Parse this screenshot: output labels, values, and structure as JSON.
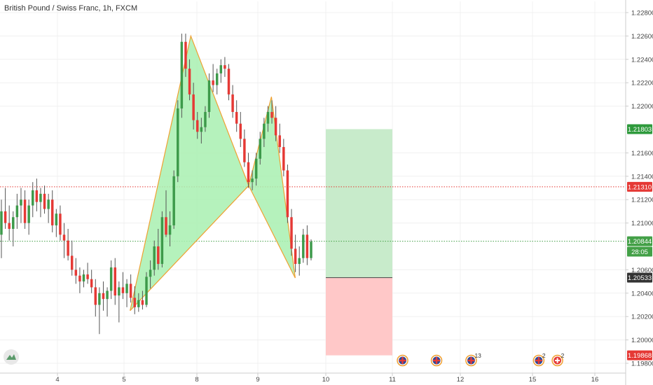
{
  "header": {
    "title": "British Pound / Swiss Franc, 1h, FXCM"
  },
  "chart_data": {
    "type": "candlestick",
    "symbol": "British Pound / Swiss Franc",
    "interval": "1h",
    "source": "FXCM",
    "ylim": [
      1.197,
      1.229
    ],
    "y_ticks": [
      "1.22800",
      "1.22600",
      "1.22400",
      "1.22200",
      "1.22000",
      "1.21600",
      "1.21400",
      "1.21200",
      "1.21000",
      "1.20600",
      "1.20400",
      "1.20200",
      "1.20000",
      "1.19800"
    ],
    "x_ticks": [
      "4",
      "5",
      "8",
      "9",
      "10",
      "11",
      "12",
      "15",
      "16"
    ],
    "xlim": [
      0,
      173
    ],
    "candles": [
      [
        1.209,
        1.212,
        1.207,
        1.211
      ],
      [
        1.211,
        1.213,
        1.2095,
        1.21
      ],
      [
        1.21,
        1.2115,
        1.2085,
        1.2095
      ],
      [
        1.2095,
        1.211,
        1.208,
        1.2105
      ],
      [
        1.2105,
        1.2125,
        1.2095,
        1.2115
      ],
      [
        1.2115,
        1.213,
        1.21,
        1.212
      ],
      [
        1.212,
        1.2128,
        1.2095,
        1.21
      ],
      [
        1.21,
        1.212,
        1.209,
        1.2115
      ],
      [
        1.2115,
        1.2135,
        1.2105,
        1.2128
      ],
      [
        1.2128,
        1.2138,
        1.211,
        1.2118
      ],
      [
        1.2118,
        1.213,
        1.2105,
        1.2125
      ],
      [
        1.2125,
        1.2132,
        1.2108,
        1.2112
      ],
      [
        1.2112,
        1.2125,
        1.21,
        1.212
      ],
      [
        1.212,
        1.2128,
        1.2092,
        1.2098
      ],
      [
        1.2098,
        1.2112,
        1.2088,
        1.2108
      ],
      [
        1.2108,
        1.2115,
        1.2085,
        1.209
      ],
      [
        1.209,
        1.21,
        1.207,
        1.2085
      ],
      [
        1.2085,
        1.2095,
        1.2068,
        1.2072
      ],
      [
        1.2072,
        1.2085,
        1.2055,
        1.206
      ],
      [
        1.206,
        1.207,
        1.2048,
        1.2055
      ],
      [
        1.2055,
        1.2062,
        1.204,
        1.205
      ],
      [
        1.205,
        1.206,
        1.2045,
        1.2056
      ],
      [
        1.2056,
        1.2066,
        1.2048,
        1.2052
      ],
      [
        1.2052,
        1.206,
        1.204,
        1.2045
      ],
      [
        1.2045,
        1.2052,
        1.202,
        1.203
      ],
      [
        1.203,
        1.2045,
        1.2005,
        1.204
      ],
      [
        1.204,
        1.205,
        1.2025,
        1.2035
      ],
      [
        1.2035,
        1.2045,
        1.202,
        1.2042
      ],
      [
        1.2042,
        1.2068,
        1.2035,
        1.2062
      ],
      [
        1.2062,
        1.207,
        1.203,
        1.2038
      ],
      [
        1.2038,
        1.205,
        1.2015,
        1.2045
      ],
      [
        1.2045,
        1.2058,
        1.2035,
        1.204
      ],
      [
        1.204,
        1.2052,
        1.2028,
        1.2048
      ],
      [
        1.2048,
        1.2056,
        1.2032,
        1.2036
      ],
      [
        1.2036,
        1.2046,
        1.2022,
        1.2028
      ],
      [
        1.2028,
        1.204,
        1.2024,
        1.2034
      ],
      [
        1.2034,
        1.2042,
        1.2026,
        1.203
      ],
      [
        1.203,
        1.2058,
        1.2028,
        1.2054
      ],
      [
        1.2054,
        1.2068,
        1.2044,
        1.206
      ],
      [
        1.206,
        1.2085,
        1.2055,
        1.208
      ],
      [
        1.208,
        1.2095,
        1.206,
        1.2065
      ],
      [
        1.2065,
        1.211,
        1.2062,
        1.2105
      ],
      [
        1.2105,
        1.2128,
        1.2088,
        1.209
      ],
      [
        1.209,
        1.211,
        1.208,
        1.2098
      ],
      [
        1.2098,
        1.2145,
        1.2095,
        1.214
      ],
      [
        1.214,
        1.2205,
        1.2135,
        1.2198
      ],
      [
        1.2198,
        1.2262,
        1.219,
        1.2255
      ],
      [
        1.2255,
        1.2262,
        1.2225,
        1.2232
      ],
      [
        1.2232,
        1.224,
        1.2205,
        1.221
      ],
      [
        1.221,
        1.222,
        1.218,
        1.2188
      ],
      [
        1.2188,
        1.2195,
        1.2172,
        1.2178
      ],
      [
        1.2178,
        1.219,
        1.2168,
        1.2182
      ],
      [
        1.2182,
        1.22,
        1.2178,
        1.2195
      ],
      [
        1.2195,
        1.2228,
        1.219,
        1.2222
      ],
      [
        1.2222,
        1.2236,
        1.2212,
        1.2218
      ],
      [
        1.2218,
        1.2232,
        1.221,
        1.2228
      ],
      [
        1.2228,
        1.224,
        1.222,
        1.2235
      ],
      [
        1.2235,
        1.2242,
        1.2225,
        1.2232
      ],
      [
        1.2232,
        1.2236,
        1.2205,
        1.221
      ],
      [
        1.221,
        1.2218,
        1.219,
        1.2195
      ],
      [
        1.2195,
        1.2205,
        1.2178,
        1.2185
      ],
      [
        1.2185,
        1.2195,
        1.2165,
        1.2172
      ],
      [
        1.2172,
        1.218,
        1.2148,
        1.2152
      ],
      [
        1.2152,
        1.216,
        1.213,
        1.2135
      ],
      [
        1.2135,
        1.2145,
        1.2128,
        1.2138
      ],
      [
        1.2138,
        1.216,
        1.2132,
        1.2155
      ],
      [
        1.2155,
        1.2178,
        1.215,
        1.2172
      ],
      [
        1.2172,
        1.219,
        1.2165,
        1.2185
      ],
      [
        1.2185,
        1.22,
        1.2178,
        1.2195
      ],
      [
        1.2195,
        1.2205,
        1.2185,
        1.219
      ],
      [
        1.219,
        1.22,
        1.217,
        1.2175
      ],
      [
        1.2175,
        1.2185,
        1.216,
        1.2165
      ],
      [
        1.2165,
        1.2172,
        1.214,
        1.2145
      ],
      [
        1.2145,
        1.215,
        1.21,
        1.2105
      ],
      [
        1.2105,
        1.2112,
        1.2072,
        1.2078
      ],
      [
        1.2078,
        1.209,
        1.2058,
        1.2065
      ],
      [
        1.2065,
        1.208,
        1.2055,
        1.207
      ],
      [
        1.207,
        1.2095,
        1.2066,
        1.209
      ],
      [
        1.209,
        1.2098,
        1.2064,
        1.207
      ],
      [
        1.207,
        1.2086,
        1.2068,
        1.2084
      ]
    ],
    "harmonic_pattern": {
      "points": [
        [
          5.25,
          1.2025
        ],
        [
          7.75,
          1.226
        ],
        [
          8.85,
          1.2132
        ],
        [
          9.2,
          1.2208
        ],
        [
          9.55,
          1.2053
        ]
      ],
      "color": "#f0a030",
      "fill": "#a8f0b0"
    },
    "position": {
      "x_start": 10,
      "x_end": 11,
      "entry": 1.20533,
      "target": 1.21803,
      "stop": 1.19868,
      "profit_fill": "#c8ebcb",
      "loss_fill": "#ffc8c8"
    },
    "horizontal_lines": [
      {
        "price": 1.2131,
        "color": "#e53935",
        "style": "dotted"
      },
      {
        "price": 1.20844,
        "color": "#43a047",
        "style": "dotted"
      }
    ],
    "price_tags": [
      {
        "label": "1.21803",
        "price": 1.21803,
        "color": "#2e9a3c"
      },
      {
        "label": "1.21310",
        "price": 1.2131,
        "color": "#e53935"
      },
      {
        "label": "1.20844",
        "price": 1.20844,
        "color": "#43a047"
      },
      {
        "label": "28:05",
        "price": 1.20755,
        "color": "#43a047"
      },
      {
        "label": "1.20533",
        "price": 1.20533,
        "color": "#333333"
      },
      {
        "label": "1.19868",
        "price": 1.19868,
        "color": "#e53935"
      }
    ],
    "events": [
      {
        "x_day": 11.15,
        "icon": "uk-flag-icon",
        "count": ""
      },
      {
        "x_day": 11.65,
        "icon": "uk-flag-icon",
        "count": ""
      },
      {
        "x_day": 12.45,
        "icon": "uk-flag-icon",
        "count": "13"
      },
      {
        "x_day": 15.1,
        "icon": "uk-flag-icon",
        "count": "2"
      },
      {
        "x_day": 15.4,
        "icon": "swiss-flag-icon",
        "count": "2"
      }
    ],
    "colors": {
      "up": "#3d9a4a",
      "down": "#e53935",
      "grid": "#f0f0f0",
      "axis": "#cccccc"
    }
  }
}
